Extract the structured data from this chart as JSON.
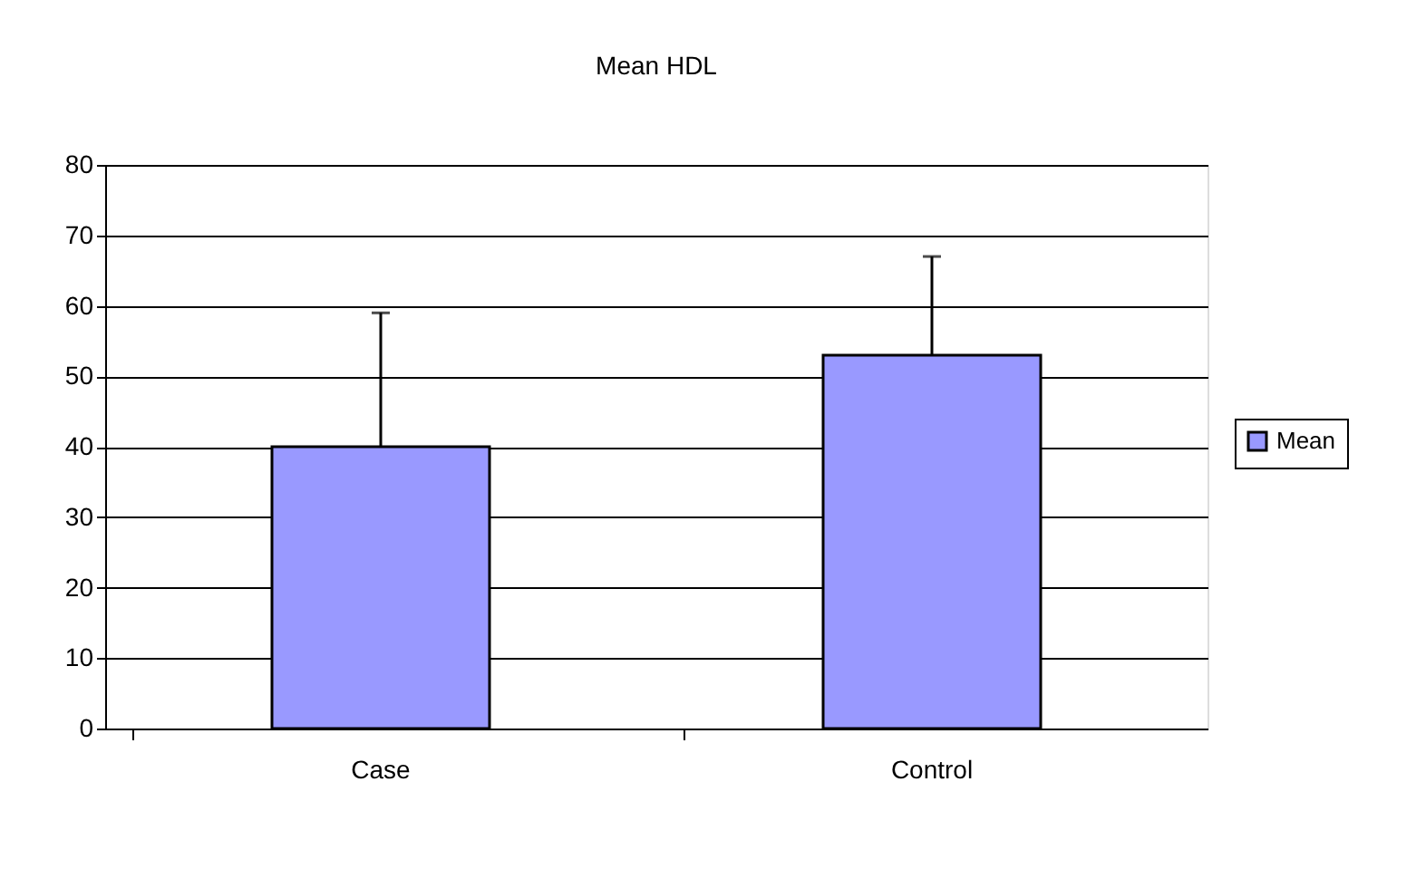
{
  "chart_data": {
    "type": "bar",
    "title": "Mean HDL",
    "categories": [
      "Case",
      "Control"
    ],
    "series": [
      {
        "name": "Mean",
        "color": "#9999ff",
        "values": [
          40,
          53
        ],
        "errors": [
          [
            40,
            59
          ],
          [
            53,
            67
          ]
        ]
      }
    ],
    "ylim": [
      0,
      80
    ],
    "yticks": [
      0,
      10,
      20,
      30,
      40,
      50,
      60,
      70,
      80
    ],
    "grid": "y",
    "legend": "right"
  }
}
